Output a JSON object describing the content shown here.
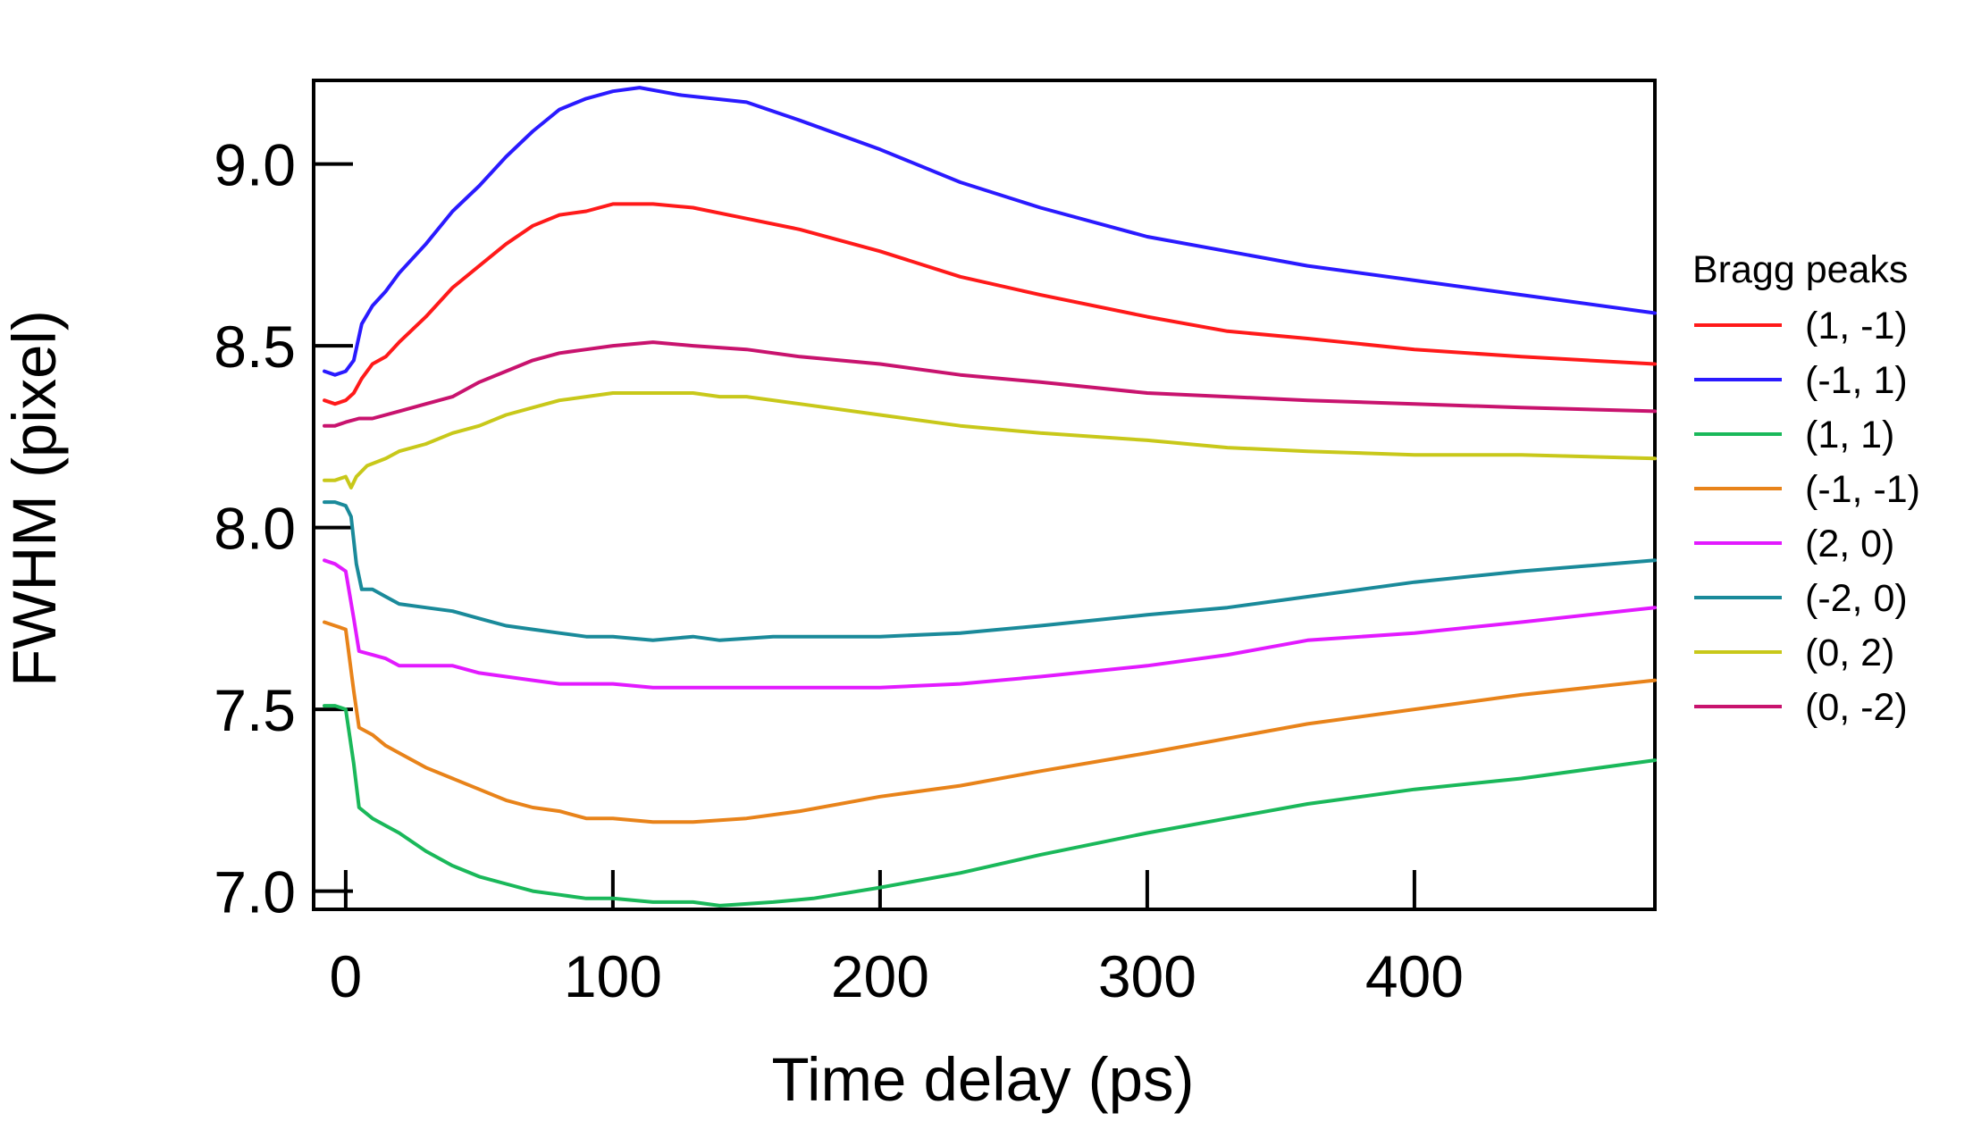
{
  "chart_data": {
    "type": "line",
    "title": "",
    "xlabel": "Time delay (ps)",
    "ylabel": "FWHM (pixel)",
    "xlim": [
      -12,
      490
    ],
    "ylim": [
      6.95,
      9.23
    ],
    "xticks": [
      0,
      100,
      200,
      300,
      400
    ],
    "yticks": [
      7.0,
      7.5,
      8.0,
      8.5,
      9.0
    ],
    "xtick_labels": [
      "0",
      "100",
      "200",
      "300",
      "400"
    ],
    "ytick_labels": [
      "7.0",
      "7.5",
      "8.0",
      "8.5",
      "9.0"
    ],
    "legend_title": "Bragg peaks",
    "legend_position": "right",
    "grid": false,
    "series": [
      {
        "name": "(1, -1)",
        "color": "#ff1a1a",
        "points": [
          [
            -8,
            8.35
          ],
          [
            -4,
            8.34
          ],
          [
            0,
            8.35
          ],
          [
            3,
            8.37
          ],
          [
            6,
            8.41
          ],
          [
            10,
            8.45
          ],
          [
            15,
            8.47
          ],
          [
            20,
            8.51
          ],
          [
            30,
            8.58
          ],
          [
            40,
            8.66
          ],
          [
            50,
            8.72
          ],
          [
            60,
            8.78
          ],
          [
            70,
            8.83
          ],
          [
            80,
            8.86
          ],
          [
            90,
            8.87
          ],
          [
            100,
            8.89
          ],
          [
            115,
            8.89
          ],
          [
            130,
            8.88
          ],
          [
            150,
            8.85
          ],
          [
            170,
            8.82
          ],
          [
            200,
            8.76
          ],
          [
            230,
            8.69
          ],
          [
            260,
            8.64
          ],
          [
            300,
            8.58
          ],
          [
            330,
            8.54
          ],
          [
            360,
            8.52
          ],
          [
            400,
            8.49
          ],
          [
            440,
            8.47
          ],
          [
            490,
            8.45
          ]
        ]
      },
      {
        "name": "(-1, 1)",
        "color": "#2a1aff",
        "points": [
          [
            -8,
            8.43
          ],
          [
            -4,
            8.42
          ],
          [
            0,
            8.43
          ],
          [
            3,
            8.46
          ],
          [
            6,
            8.56
          ],
          [
            10,
            8.61
          ],
          [
            15,
            8.65
          ],
          [
            20,
            8.7
          ],
          [
            30,
            8.78
          ],
          [
            40,
            8.87
          ],
          [
            50,
            8.94
          ],
          [
            60,
            9.02
          ],
          [
            70,
            9.09
          ],
          [
            80,
            9.15
          ],
          [
            90,
            9.18
          ],
          [
            100,
            9.2
          ],
          [
            110,
            9.21
          ],
          [
            125,
            9.19
          ],
          [
            150,
            9.17
          ],
          [
            170,
            9.12
          ],
          [
            200,
            9.04
          ],
          [
            230,
            8.95
          ],
          [
            260,
            8.88
          ],
          [
            300,
            8.8
          ],
          [
            330,
            8.76
          ],
          [
            360,
            8.72
          ],
          [
            400,
            8.68
          ],
          [
            440,
            8.64
          ],
          [
            490,
            8.59
          ]
        ]
      },
      {
        "name": "(1, 1)",
        "color": "#1ab85a",
        "points": [
          [
            -8,
            7.51
          ],
          [
            -4,
            7.51
          ],
          [
            0,
            7.5
          ],
          [
            3,
            7.35
          ],
          [
            5,
            7.23
          ],
          [
            10,
            7.2
          ],
          [
            15,
            7.18
          ],
          [
            20,
            7.16
          ],
          [
            30,
            7.11
          ],
          [
            40,
            7.07
          ],
          [
            50,
            7.04
          ],
          [
            60,
            7.02
          ],
          [
            70,
            7.0
          ],
          [
            80,
            6.99
          ],
          [
            90,
            6.98
          ],
          [
            100,
            6.98
          ],
          [
            115,
            6.97
          ],
          [
            130,
            6.97
          ],
          [
            140,
            6.96
          ],
          [
            160,
            6.97
          ],
          [
            175,
            6.98
          ],
          [
            200,
            7.01
          ],
          [
            230,
            7.05
          ],
          [
            260,
            7.1
          ],
          [
            300,
            7.16
          ],
          [
            330,
            7.2
          ],
          [
            360,
            7.24
          ],
          [
            400,
            7.28
          ],
          [
            440,
            7.31
          ],
          [
            490,
            7.36
          ]
        ]
      },
      {
        "name": "(-1, -1)",
        "color": "#e8831a",
        "points": [
          [
            -8,
            7.74
          ],
          [
            -4,
            7.73
          ],
          [
            0,
            7.72
          ],
          [
            3,
            7.55
          ],
          [
            5,
            7.45
          ],
          [
            10,
            7.43
          ],
          [
            15,
            7.4
          ],
          [
            20,
            7.38
          ],
          [
            30,
            7.34
          ],
          [
            40,
            7.31
          ],
          [
            50,
            7.28
          ],
          [
            60,
            7.25
          ],
          [
            70,
            7.23
          ],
          [
            80,
            7.22
          ],
          [
            90,
            7.2
          ],
          [
            100,
            7.2
          ],
          [
            115,
            7.19
          ],
          [
            130,
            7.19
          ],
          [
            150,
            7.2
          ],
          [
            170,
            7.22
          ],
          [
            200,
            7.26
          ],
          [
            230,
            7.29
          ],
          [
            260,
            7.33
          ],
          [
            300,
            7.38
          ],
          [
            330,
            7.42
          ],
          [
            360,
            7.46
          ],
          [
            400,
            7.5
          ],
          [
            440,
            7.54
          ],
          [
            490,
            7.58
          ]
        ]
      },
      {
        "name": "(2, 0)",
        "color": "#e21aff",
        "points": [
          [
            -8,
            7.91
          ],
          [
            -4,
            7.9
          ],
          [
            0,
            7.88
          ],
          [
            3,
            7.75
          ],
          [
            5,
            7.66
          ],
          [
            10,
            7.65
          ],
          [
            15,
            7.64
          ],
          [
            20,
            7.62
          ],
          [
            30,
            7.62
          ],
          [
            40,
            7.62
          ],
          [
            50,
            7.6
          ],
          [
            60,
            7.59
          ],
          [
            70,
            7.58
          ],
          [
            80,
            7.57
          ],
          [
            100,
            7.57
          ],
          [
            115,
            7.56
          ],
          [
            130,
            7.56
          ],
          [
            150,
            7.56
          ],
          [
            170,
            7.56
          ],
          [
            200,
            7.56
          ],
          [
            230,
            7.57
          ],
          [
            260,
            7.59
          ],
          [
            300,
            7.62
          ],
          [
            330,
            7.65
          ],
          [
            360,
            7.69
          ],
          [
            400,
            7.71
          ],
          [
            440,
            7.74
          ],
          [
            490,
            7.78
          ]
        ]
      },
      {
        "name": "(-2, 0)",
        "color": "#1a8a9a",
        "points": [
          [
            -8,
            8.07
          ],
          [
            -4,
            8.07
          ],
          [
            0,
            8.06
          ],
          [
            2,
            8.03
          ],
          [
            4,
            7.9
          ],
          [
            6,
            7.83
          ],
          [
            10,
            7.83
          ],
          [
            15,
            7.81
          ],
          [
            20,
            7.79
          ],
          [
            30,
            7.78
          ],
          [
            40,
            7.77
          ],
          [
            50,
            7.75
          ],
          [
            60,
            7.73
          ],
          [
            70,
            7.72
          ],
          [
            80,
            7.71
          ],
          [
            90,
            7.7
          ],
          [
            100,
            7.7
          ],
          [
            115,
            7.69
          ],
          [
            130,
            7.7
          ],
          [
            140,
            7.69
          ],
          [
            160,
            7.7
          ],
          [
            200,
            7.7
          ],
          [
            230,
            7.71
          ],
          [
            260,
            7.73
          ],
          [
            300,
            7.76
          ],
          [
            330,
            7.78
          ],
          [
            360,
            7.81
          ],
          [
            400,
            7.85
          ],
          [
            440,
            7.88
          ],
          [
            490,
            7.91
          ]
        ]
      },
      {
        "name": "(0, 2)",
        "color": "#c8c81a",
        "points": [
          [
            -8,
            8.13
          ],
          [
            -4,
            8.13
          ],
          [
            0,
            8.14
          ],
          [
            2,
            8.11
          ],
          [
            4,
            8.14
          ],
          [
            8,
            8.17
          ],
          [
            15,
            8.19
          ],
          [
            20,
            8.21
          ],
          [
            30,
            8.23
          ],
          [
            40,
            8.26
          ],
          [
            50,
            8.28
          ],
          [
            60,
            8.31
          ],
          [
            70,
            8.33
          ],
          [
            80,
            8.35
          ],
          [
            90,
            8.36
          ],
          [
            100,
            8.37
          ],
          [
            115,
            8.37
          ],
          [
            130,
            8.37
          ],
          [
            140,
            8.36
          ],
          [
            150,
            8.36
          ],
          [
            170,
            8.34
          ],
          [
            200,
            8.31
          ],
          [
            230,
            8.28
          ],
          [
            260,
            8.26
          ],
          [
            300,
            8.24
          ],
          [
            330,
            8.22
          ],
          [
            360,
            8.21
          ],
          [
            400,
            8.2
          ],
          [
            440,
            8.2
          ],
          [
            490,
            8.19
          ]
        ]
      },
      {
        "name": "(0, -2)",
        "color": "#c8136e",
        "points": [
          [
            -8,
            8.28
          ],
          [
            -4,
            8.28
          ],
          [
            0,
            8.29
          ],
          [
            5,
            8.3
          ],
          [
            10,
            8.3
          ],
          [
            20,
            8.32
          ],
          [
            30,
            8.34
          ],
          [
            40,
            8.36
          ],
          [
            50,
            8.4
          ],
          [
            60,
            8.43
          ],
          [
            70,
            8.46
          ],
          [
            80,
            8.48
          ],
          [
            90,
            8.49
          ],
          [
            100,
            8.5
          ],
          [
            115,
            8.51
          ],
          [
            130,
            8.5
          ],
          [
            150,
            8.49
          ],
          [
            170,
            8.47
          ],
          [
            200,
            8.45
          ],
          [
            230,
            8.42
          ],
          [
            260,
            8.4
          ],
          [
            300,
            8.37
          ],
          [
            330,
            8.36
          ],
          [
            360,
            8.35
          ],
          [
            400,
            8.34
          ],
          [
            440,
            8.33
          ],
          [
            490,
            8.32
          ]
        ]
      }
    ]
  }
}
